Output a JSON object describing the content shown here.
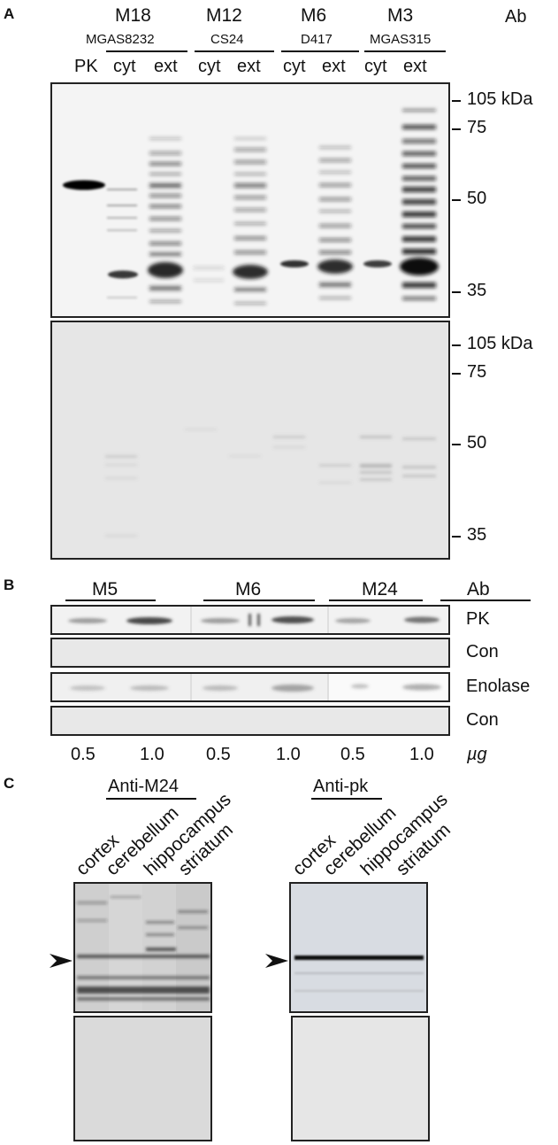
{
  "panelA": {
    "letter": "A",
    "ab_label": "Ab",
    "groups": [
      {
        "strain": "M18",
        "sub": "MGAS8232"
      },
      {
        "strain": "M12",
        "sub": "CS24"
      },
      {
        "strain": "M6",
        "sub": "D417"
      },
      {
        "strain": "M3",
        "sub": "MGAS315"
      }
    ],
    "lanes": [
      "PK",
      "cyt",
      "ext",
      "cyt",
      "ext",
      "cyt",
      "ext",
      "cyt",
      "ext"
    ],
    "mw_top": [
      "105 kDa",
      "75",
      "50",
      "35"
    ],
    "mw_bottom": [
      "105 kDa",
      "75",
      "50",
      "35"
    ]
  },
  "panelB": {
    "letter": "B",
    "groups": [
      "M5",
      "M6",
      "M24"
    ],
    "ab_label": "Ab",
    "rows": [
      "PK",
      "Con",
      "Enolase",
      "Con"
    ],
    "doses": [
      "0.5",
      "1.0",
      "0.5",
      "1.0",
      "0.5",
      "1.0"
    ],
    "unit": "µg"
  },
  "panelC": {
    "letter": "C",
    "left_title": "Anti-M24",
    "right_title": "Anti-pk",
    "tissues": [
      "cortex",
      "cerebellum",
      "hippocampus",
      "striatum"
    ]
  }
}
